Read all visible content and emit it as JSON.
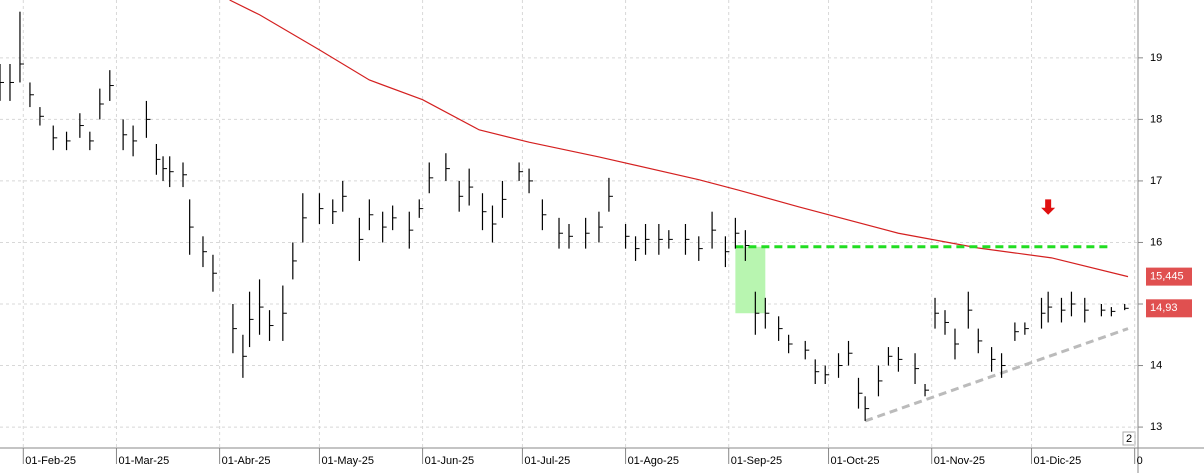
{
  "chart_data": {
    "type": "ohlc",
    "color": "#000000",
    "grid": true,
    "x": [
      "2025-01-25",
      "2025-01-28",
      "2025-01-31",
      "2025-02-03",
      "2025-02-06",
      "2025-02-10",
      "2025-02-14",
      "2025-02-18",
      "2025-02-21",
      "2025-02-24",
      "2025-02-27",
      "2025-03-03",
      "2025-03-06",
      "2025-03-10",
      "2025-03-13",
      "2025-03-15",
      "2025-03-17",
      "2025-03-21",
      "2025-03-23",
      "2025-03-27",
      "2025-03-30",
      "2025-04-05",
      "2025-04-08",
      "2025-04-10",
      "2025-04-13",
      "2025-04-16",
      "2025-04-20",
      "2025-04-23",
      "2025-04-26",
      "2025-05-01",
      "2025-05-05",
      "2025-05-08",
      "2025-05-13",
      "2025-05-16",
      "2025-05-20",
      "2025-05-23",
      "2025-05-28",
      "2025-05-31",
      "2025-06-03",
      "2025-06-08",
      "2025-06-12",
      "2025-06-15",
      "2025-06-19",
      "2025-06-22",
      "2025-06-25",
      "2025-06-30",
      "2025-07-03",
      "2025-07-07",
      "2025-07-12",
      "2025-07-15",
      "2025-07-20",
      "2025-07-24",
      "2025-07-27",
      "2025-08-01",
      "2025-08-04",
      "2025-08-07",
      "2025-08-11",
      "2025-08-14",
      "2025-08-19",
      "2025-08-23",
      "2025-08-27",
      "2025-08-31",
      "2025-09-03",
      "2025-09-06",
      "2025-09-09",
      "2025-09-12",
      "2025-09-16",
      "2025-09-19",
      "2025-09-24",
      "2025-09-27",
      "2025-09-30",
      "2025-10-04",
      "2025-10-07",
      "2025-10-10",
      "2025-10-12",
      "2025-10-16",
      "2025-10-19",
      "2025-10-22",
      "2025-10-27",
      "2025-10-30",
      "2025-11-02",
      "2025-11-05",
      "2025-11-08",
      "2025-11-12",
      "2025-11-15",
      "2025-11-19",
      "2025-11-22",
      "2025-11-26",
      "2025-11-29",
      "2025-12-04",
      "2025-12-06",
      "2025-12-10",
      "2025-12-13",
      "2025-12-17",
      "2025-12-22",
      "2025-12-25",
      "2025-12-29"
    ],
    "high": [
      18.9,
      18.9,
      19.75,
      18.6,
      18.2,
      17.9,
      17.8,
      18.1,
      17.8,
      18.5,
      18.8,
      18.0,
      17.9,
      18.3,
      17.6,
      17.4,
      17.4,
      17.3,
      16.7,
      16.1,
      15.8,
      15.0,
      14.5,
      15.2,
      15.4,
      14.9,
      15.3,
      16.0,
      16.8,
      16.8,
      16.7,
      17.0,
      16.4,
      16.7,
      16.5,
      16.6,
      16.5,
      16.7,
      17.3,
      17.45,
      17.0,
      17.2,
      16.8,
      16.6,
      17.0,
      17.3,
      17.2,
      16.7,
      16.4,
      16.3,
      16.4,
      16.5,
      17.05,
      16.3,
      16.1,
      16.3,
      16.3,
      16.2,
      16.3,
      16.1,
      16.5,
      16.1,
      16.4,
      16.2,
      15.2,
      15.1,
      14.8,
      14.5,
      14.4,
      14.1,
      14.0,
      14.2,
      14.4,
      13.8,
      13.5,
      14.0,
      14.3,
      14.3,
      14.2,
      13.7,
      15.1,
      14.9,
      14.6,
      15.2,
      14.6,
      14.3,
      14.2,
      14.7,
      14.7,
      15.1,
      15.2,
      15.1,
      15.2,
      15.1,
      15.0,
      14.95,
      15.0
    ],
    "low": [
      18.3,
      18.3,
      18.6,
      18.2,
      17.9,
      17.5,
      17.5,
      17.7,
      17.5,
      18.0,
      18.3,
      17.5,
      17.4,
      17.7,
      17.1,
      17.0,
      16.9,
      16.9,
      15.8,
      15.6,
      15.2,
      14.2,
      13.8,
      14.3,
      14.5,
      14.4,
      14.4,
      15.4,
      16.0,
      16.3,
      16.3,
      16.5,
      15.7,
      16.2,
      16.0,
      16.2,
      15.9,
      16.4,
      16.8,
      17.0,
      16.5,
      16.6,
      16.2,
      16.0,
      16.4,
      17.0,
      16.8,
      16.2,
      15.9,
      15.9,
      15.9,
      16.0,
      16.5,
      15.9,
      15.7,
      15.8,
      15.8,
      15.9,
      15.8,
      15.7,
      15.9,
      15.6,
      15.9,
      15.7,
      14.5,
      14.6,
      14.4,
      14.2,
      14.1,
      13.7,
      13.7,
      13.8,
      14.0,
      13.3,
      13.1,
      13.5,
      14.0,
      13.9,
      13.7,
      13.5,
      14.6,
      14.5,
      14.1,
      14.6,
      14.2,
      13.9,
      13.8,
      14.4,
      14.5,
      14.6,
      14.7,
      14.7,
      14.8,
      14.7,
      14.8,
      14.8,
      14.9
    ],
    "close": [
      18.6,
      18.6,
      18.9,
      18.4,
      18.05,
      17.7,
      17.65,
      17.9,
      17.65,
      18.25,
      18.55,
      17.75,
      17.65,
      18.0,
      17.35,
      17.2,
      17.15,
      17.1,
      16.25,
      15.85,
      15.5,
      14.6,
      14.15,
      14.75,
      14.95,
      14.65,
      14.85,
      15.7,
      16.4,
      16.55,
      16.5,
      16.75,
      16.05,
      16.45,
      16.25,
      16.4,
      16.2,
      16.55,
      17.05,
      17.2,
      16.75,
      16.9,
      16.5,
      16.3,
      16.7,
      17.15,
      17.0,
      16.45,
      16.15,
      16.1,
      16.15,
      16.25,
      16.75,
      16.1,
      15.9,
      16.05,
      16.05,
      16.05,
      16.05,
      15.9,
      16.2,
      15.85,
      16.15,
      15.95,
      14.85,
      14.85,
      14.6,
      14.35,
      14.25,
      13.9,
      13.85,
      14.0,
      14.2,
      13.55,
      13.3,
      13.75,
      14.15,
      14.1,
      13.95,
      13.6,
      14.85,
      14.7,
      14.35,
      14.9,
      14.4,
      14.1,
      14.0,
      14.55,
      14.6,
      14.85,
      14.95,
      14.9,
      15.0,
      14.9,
      14.9,
      14.88,
      14.93
    ],
    "xlim": [
      "2025-01-25",
      "2026-01-02"
    ],
    "xticks": [
      {
        "value": "2025-02-01",
        "label": "01-Feb-25"
      },
      {
        "value": "2025-03-01",
        "label": "01-Mar-25"
      },
      {
        "value": "2025-04-01",
        "label": "01-Abr-25"
      },
      {
        "value": "2025-05-01",
        "label": "01-May-25"
      },
      {
        "value": "2025-06-01",
        "label": "01-Jun-25"
      },
      {
        "value": "2025-07-01",
        "label": "01-Jul-25"
      },
      {
        "value": "2025-08-01",
        "label": "01-Ago-25"
      },
      {
        "value": "2025-09-01",
        "label": "01-Sep-25"
      },
      {
        "value": "2025-10-01",
        "label": "01-Oct-25"
      },
      {
        "value": "2025-11-01",
        "label": "01-Nov-25"
      },
      {
        "value": "2025-12-01",
        "label": "01-Dic-25"
      },
      {
        "value": "2026-01-01",
        "label": "0"
      }
    ],
    "ylim": [
      12.66,
      19.94
    ],
    "yticks": [
      13,
      14,
      15,
      16,
      17,
      18,
      19
    ],
    "moving_average": {
      "color": "#d42020",
      "x": [
        "2025-04-04",
        "2025-04-13",
        "2025-05-01",
        "2025-05-16",
        "2025-06-01",
        "2025-06-18",
        "2025-07-03",
        "2025-07-24",
        "2025-08-23",
        "2025-09-04",
        "2025-09-22",
        "2025-10-22",
        "2025-11-15",
        "2025-12-07",
        "2025-12-30"
      ],
      "values": [
        19.94,
        19.7,
        19.13,
        18.64,
        18.32,
        17.83,
        17.63,
        17.39,
        17.02,
        16.85,
        16.58,
        16.15,
        15.91,
        15.75,
        15.445
      ]
    },
    "price_tags": [
      {
        "value": 15.445,
        "label": "15,445",
        "color": "#e05050"
      },
      {
        "value": 14.93,
        "label": "14,93",
        "color": "#e05050"
      }
    ],
    "resistance": {
      "x": [
        "2025-09-03",
        "2025-12-24"
      ],
      "value": 15.93,
      "color": "#22dd22"
    },
    "gap_zone": {
      "x": [
        "2025-09-03",
        "2025-09-12"
      ],
      "y": [
        14.85,
        15.93
      ],
      "color": "#b8f5b0"
    },
    "trendline": {
      "x": [
        "2025-10-12",
        "2025-12-30"
      ],
      "y": [
        13.1,
        14.6
      ],
      "color": "#bbbbbb"
    },
    "arrow": {
      "x": "2025-12-06",
      "y": [
        16.7,
        16.45
      ],
      "color": "#e01010"
    },
    "panel_label": "2"
  }
}
